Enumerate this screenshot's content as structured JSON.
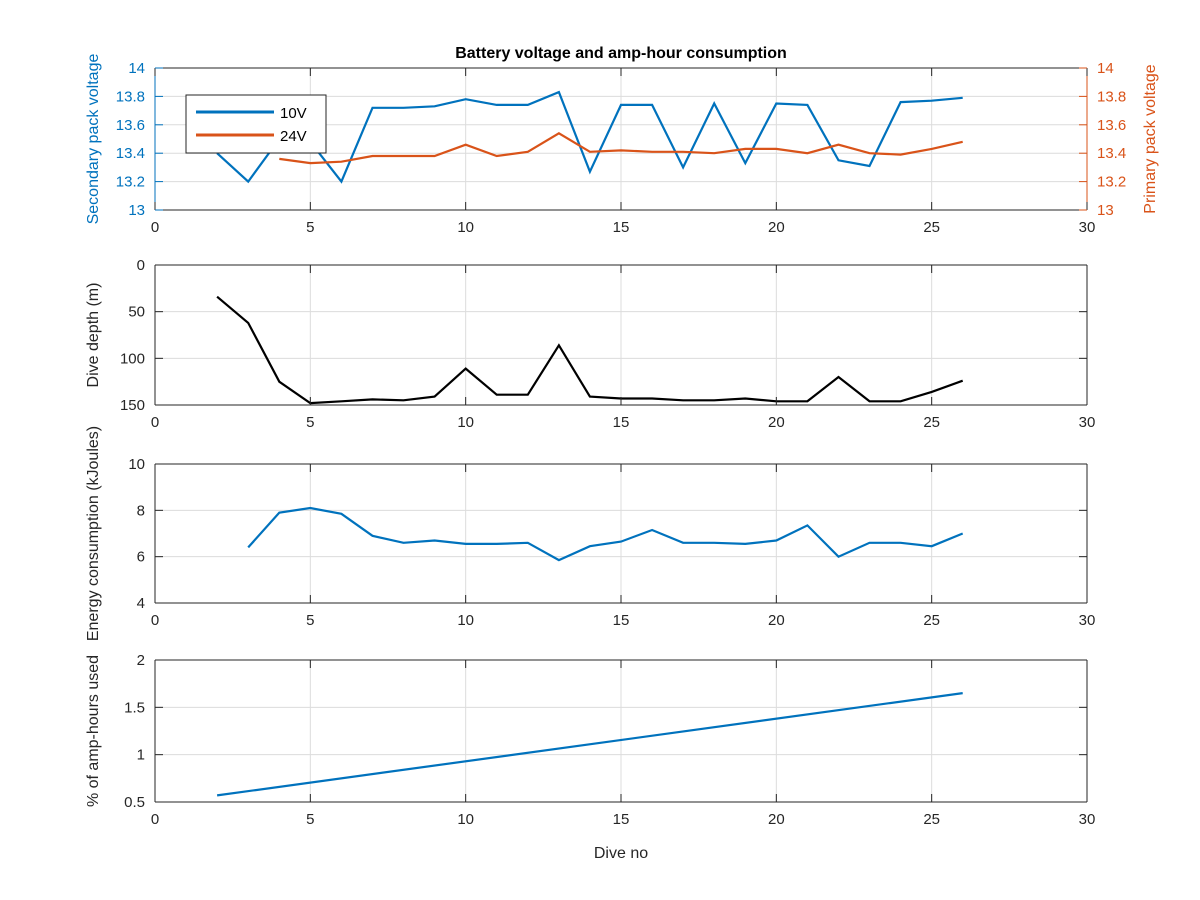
{
  "figure": {
    "background": "#ffffff"
  },
  "chart_data": [
    {
      "type": "line",
      "title": "Battery voltage and amp-hour consumption",
      "xlabel": "",
      "ylabel": "Secondary pack voltage",
      "ylabel_right": "Primary pack voltage",
      "xlim": [
        0,
        30
      ],
      "ylim": [
        13,
        14
      ],
      "ylim_right": [
        13,
        14
      ],
      "xticks": [
        0,
        5,
        10,
        15,
        20,
        25,
        30
      ],
      "yticks": [
        13,
        13.2,
        13.4,
        13.6,
        13.8,
        14
      ],
      "yticks_right": [
        13,
        13.2,
        13.4,
        13.6,
        13.8,
        14
      ],
      "grid": true,
      "legend": {
        "position": "top-left",
        "entries": [
          "10V",
          "24V"
        ]
      },
      "left_axis_color": "#0072bd",
      "right_axis_color": "#d95319",
      "series": [
        {
          "name": "10V",
          "axis": "left",
          "color": "#0072bd",
          "x": [
            2,
            3,
            4,
            5,
            6,
            7,
            8,
            9,
            10,
            11,
            12,
            13,
            14,
            15,
            16,
            17,
            18,
            19,
            20,
            21,
            22,
            23,
            24,
            25,
            26
          ],
          "y": [
            13.4,
            13.2,
            13.5,
            13.48,
            13.2,
            13.72,
            13.72,
            13.73,
            13.78,
            13.74,
            13.74,
            13.83,
            13.27,
            13.74,
            13.74,
            13.3,
            13.75,
            13.33,
            13.75,
            13.74,
            13.35,
            13.31,
            13.76,
            13.77,
            13.79
          ]
        },
        {
          "name": "24V",
          "axis": "right",
          "color": "#d95319",
          "x": [
            4,
            5,
            6,
            7,
            8,
            9,
            10,
            11,
            12,
            13,
            14,
            15,
            16,
            17,
            18,
            19,
            20,
            21,
            22,
            23,
            24,
            25,
            26
          ],
          "y": [
            13.36,
            13.33,
            13.34,
            13.38,
            13.38,
            13.38,
            13.46,
            13.38,
            13.41,
            13.54,
            13.41,
            13.42,
            13.41,
            13.41,
            13.4,
            13.43,
            13.43,
            13.4,
            13.46,
            13.4,
            13.39,
            13.43,
            13.48
          ]
        }
      ]
    },
    {
      "type": "line",
      "title": "",
      "xlabel": "",
      "ylabel": "Dive depth (m)",
      "xlim": [
        0,
        30
      ],
      "ylim": [
        0,
        150
      ],
      "y_reversed": true,
      "xticks": [
        0,
        5,
        10,
        15,
        20,
        25,
        30
      ],
      "yticks": [
        0,
        50,
        100,
        150
      ],
      "grid": true,
      "series": [
        {
          "color": "#000000",
          "x": [
            2,
            3,
            4,
            5,
            6,
            7,
            8,
            9,
            10,
            11,
            12,
            13,
            14,
            15,
            16,
            17,
            18,
            19,
            20,
            21,
            22,
            23,
            24,
            25,
            26
          ],
          "y": [
            34,
            62,
            125,
            148,
            146,
            144,
            145,
            141,
            111,
            139,
            139,
            86,
            141,
            143,
            143,
            145,
            145,
            143,
            146,
            146,
            120,
            146,
            146,
            136,
            124
          ]
        }
      ]
    },
    {
      "type": "line",
      "title": "",
      "xlabel": "",
      "ylabel": "Energy consumption (kJoules)",
      "xlim": [
        0,
        30
      ],
      "ylim": [
        4,
        10
      ],
      "xticks": [
        0,
        5,
        10,
        15,
        20,
        25,
        30
      ],
      "yticks": [
        4,
        6,
        8,
        10
      ],
      "grid": true,
      "series": [
        {
          "color": "#0072bd",
          "x": [
            3,
            4,
            5,
            6,
            7,
            8,
            9,
            10,
            11,
            12,
            13,
            14,
            15,
            16,
            17,
            18,
            19,
            20,
            21,
            22,
            23,
            24,
            25,
            26
          ],
          "y": [
            6.4,
            7.9,
            8.1,
            7.85,
            6.9,
            6.6,
            6.7,
            6.55,
            6.55,
            6.6,
            5.85,
            6.45,
            6.65,
            7.15,
            6.6,
            6.6,
            6.55,
            6.7,
            7.35,
            6.0,
            6.6,
            6.6,
            6.45,
            7.0
          ]
        }
      ]
    },
    {
      "type": "line",
      "title": "",
      "xlabel": "Dive no",
      "ylabel": "% of amp-hours used",
      "xlim": [
        0,
        30
      ],
      "ylim": [
        0.5,
        2
      ],
      "xticks": [
        0,
        5,
        10,
        15,
        20,
        25,
        30
      ],
      "yticks": [
        0.5,
        1,
        1.5,
        2
      ],
      "grid": true,
      "series": [
        {
          "color": "#0072bd",
          "x": [
            2,
            26
          ],
          "y": [
            0.57,
            1.65
          ]
        }
      ]
    }
  ]
}
